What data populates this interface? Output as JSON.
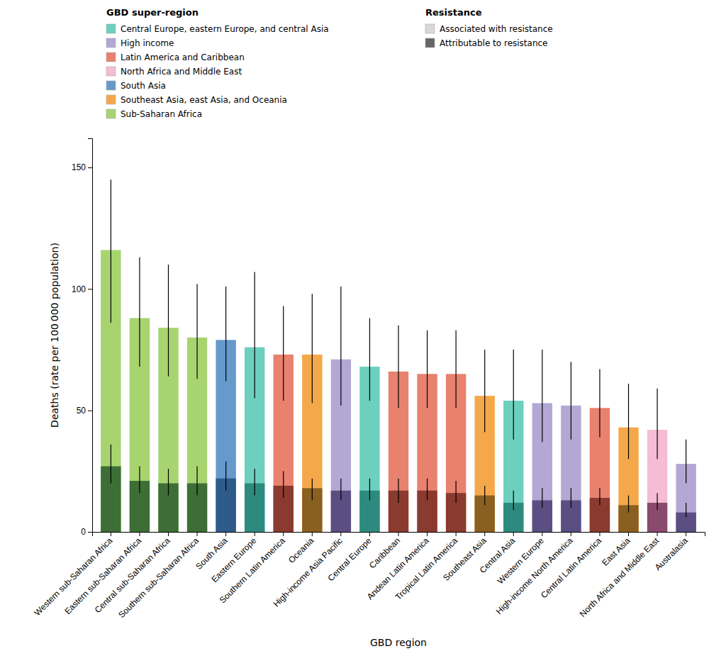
{
  "chart_data": {
    "type": "bar",
    "xlabel": "GBD region",
    "ylabel": "Deaths (rate per 100 000 population)",
    "categories": [
      "Western sub-Saharan Africa",
      "Eastern sub-Saharan Africa",
      "Central sub-Saharan Africa",
      "Southern sub-Saharan Africa",
      "South Asia",
      "Eastern Europe",
      "Southern Latin America",
      "Oceania",
      "High-income Asia Pacific",
      "Central Europe",
      "Caribbean",
      "Andean Latin America",
      "Tropical Latin America",
      "Southeast Asia",
      "Central Asia",
      "Western Europe",
      "High-income North America",
      "Central Latin America",
      "East Asia",
      "North Africa and Middle East",
      "Australasia"
    ],
    "series": [
      {
        "name": "Associated with resistance",
        "color": "#d8d8d8",
        "colors": [
          "#a8d470",
          "#a8d470",
          "#a8d470",
          "#a8d470",
          "#6699cc",
          "#6dcfbe",
          "#e8816e",
          "#f5a84a",
          "#b3a8d4",
          "#6dcfbe",
          "#e8816e",
          "#e8816e",
          "#e8816e",
          "#f5a84a",
          "#6dcfbe",
          "#b3a8d4",
          "#b3a8d4",
          "#e8816e",
          "#f5a84a",
          "#f5bcd4",
          "#b3a8d4"
        ],
        "values": [
          116,
          88,
          84,
          80,
          79,
          76,
          73,
          73,
          71,
          68,
          66,
          65,
          65,
          56,
          54,
          53,
          52,
          51,
          43,
          42,
          28
        ],
        "ci_lower": [
          86,
          68,
          64,
          63,
          62,
          55,
          54,
          53,
          52,
          54,
          51,
          51,
          51,
          41,
          38,
          37,
          38,
          39,
          30,
          30,
          20
        ],
        "ci_upper": [
          145,
          113,
          110,
          102,
          101,
          107,
          93,
          98,
          101,
          88,
          85,
          83,
          83,
          75,
          75,
          75,
          70,
          67,
          61,
          59,
          38
        ]
      },
      {
        "name": "Attributable to resistance",
        "color": "#666666",
        "colors": [
          "#3d6e35",
          "#3d6e35",
          "#3d6e35",
          "#3d6e35",
          "#2e5a8a",
          "#2e8a7e",
          "#8a3a2e",
          "#8a6020",
          "#5a4e82",
          "#2e8a7e",
          "#8a3a2e",
          "#8a3a2e",
          "#8a3a2e",
          "#8a6020",
          "#2e8a7e",
          "#5a4e82",
          "#5a4e82",
          "#8a3a2e",
          "#8a6020",
          "#8a4a6e",
          "#5a4e82"
        ],
        "values": [
          27,
          21,
          20,
          20,
          22,
          20,
          19,
          18,
          17,
          17,
          17,
          17,
          16,
          15,
          12,
          13,
          13,
          14,
          11,
          12,
          8
        ],
        "ci_lower": [
          20,
          16,
          15,
          15,
          17,
          15,
          14,
          13,
          13,
          13,
          12,
          13,
          12,
          11,
          9,
          10,
          10,
          11,
          8,
          9,
          6
        ],
        "ci_upper": [
          36,
          27,
          26,
          27,
          29,
          26,
          25,
          22,
          22,
          22,
          22,
          22,
          21,
          19,
          17,
          18,
          18,
          18,
          15,
          16,
          12
        ]
      }
    ],
    "group_legend": {
      "title": "GBD super-region",
      "names": [
        "Central Europe, eastern Europe, and central Asia",
        "High income",
        "Latin America and Caribbean",
        "North Africa and Middle East",
        "South Asia",
        "Southeast Asia, east Asia, and Oceania",
        "Sub-Saharan Africa"
      ],
      "colors": [
        "#6dcfbe",
        "#b3a8d4",
        "#e8816e",
        "#f5bcd4",
        "#6699cc",
        "#f5a84a",
        "#a8d470"
      ]
    },
    "legend_title": "Resistance",
    "ylim": [
      0,
      162
    ],
    "yticks": [
      0,
      50,
      100,
      150
    ],
    "grid": false
  }
}
